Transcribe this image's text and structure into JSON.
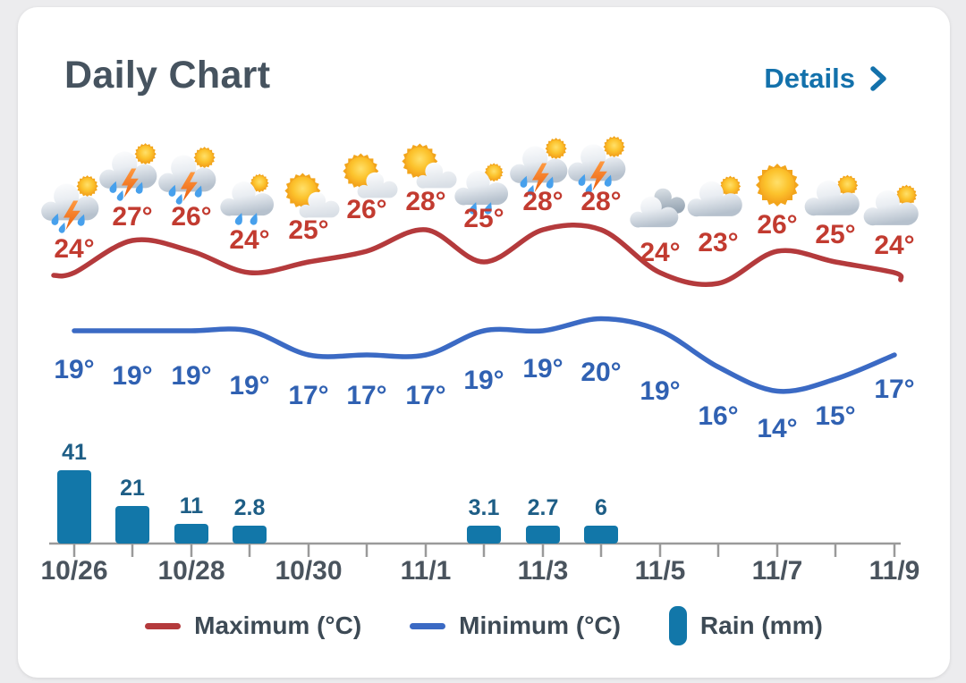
{
  "header": {
    "title": "Daily Chart",
    "details_label": "Details"
  },
  "legend": [
    {
      "label": "Maximum (°C)",
      "swatch": "line",
      "color": "#b43a3c"
    },
    {
      "label": "Minimum (°C)",
      "swatch": "line",
      "color": "#3b6ac4"
    },
    {
      "label": "Rain (mm)",
      "swatch": "bar",
      "color": "#1277a9"
    }
  ],
  "colors": {
    "page_bg": "#ececee",
    "card_bg": "#ffffff",
    "title": "#46535f",
    "details_link": "#1371ab",
    "max_line": "#b43a3c",
    "max_label": "#c23b30",
    "min_line": "#3b6ac4",
    "min_label": "#3061b2",
    "rain_bar": "#1277a9",
    "rain_label": "#1e5e86",
    "axis": "#9a9a9a",
    "date_label": "#4a545e"
  },
  "chart_data": {
    "type": "line+bar weather daily combo",
    "x_tick_labels": [
      "10/26",
      "10/28",
      "10/30",
      "11/1",
      "11/3",
      "11/5",
      "11/7",
      "11/9"
    ],
    "degree_suffix": "°",
    "days": [
      {
        "icon": "storm-sun",
        "max": 24,
        "min": 19,
        "rain": 41
      },
      {
        "icon": "storm-sun",
        "max": 27,
        "min": 19,
        "rain": 21
      },
      {
        "icon": "storm-sun",
        "max": 26,
        "min": 19,
        "rain": 11
      },
      {
        "icon": "rain-sun",
        "max": 24,
        "min": 19,
        "rain": 2.8
      },
      {
        "icon": "mostly-sunny",
        "max": 25,
        "min": 17,
        "rain": 0
      },
      {
        "icon": "mostly-sunny",
        "max": 26,
        "min": 17,
        "rain": 0
      },
      {
        "icon": "mostly-sunny",
        "max": 28,
        "min": 17,
        "rain": 0
      },
      {
        "icon": "rain-sun",
        "max": 25,
        "min": 19,
        "rain": 3.1
      },
      {
        "icon": "storm-sun",
        "max": 28,
        "min": 19,
        "rain": 2.7
      },
      {
        "icon": "storm-sun",
        "max": 28,
        "min": 20,
        "rain": 6
      },
      {
        "icon": "cloudy",
        "max": 24,
        "min": 19,
        "rain": 0
      },
      {
        "icon": "partly-cloudy",
        "max": 23,
        "min": 16,
        "rain": 0
      },
      {
        "icon": "sunny",
        "max": 26,
        "min": 14,
        "rain": 0
      },
      {
        "icon": "partly-cloudy",
        "max": 25,
        "min": 15,
        "rain": 0
      },
      {
        "icon": "partly-cloudy",
        "max": 24,
        "min": 17,
        "rain": 0
      }
    ],
    "series": [
      {
        "name": "Maximum (°C)",
        "type": "line",
        "color": "#b43a3c",
        "values": [
          24,
          27,
          26,
          24,
          25,
          26,
          28,
          25,
          28,
          28,
          24,
          23,
          26,
          25,
          24
        ]
      },
      {
        "name": "Minimum (°C)",
        "type": "line",
        "color": "#3b6ac4",
        "values": [
          19,
          19,
          19,
          19,
          17,
          17,
          17,
          19,
          19,
          20,
          19,
          16,
          14,
          15,
          17
        ]
      },
      {
        "name": "Rain (mm)",
        "type": "bar",
        "color": "#1277a9",
        "values": [
          41,
          21,
          11,
          2.8,
          0,
          0,
          0,
          3.1,
          2.7,
          6,
          0,
          0,
          0,
          0,
          0
        ]
      }
    ]
  }
}
